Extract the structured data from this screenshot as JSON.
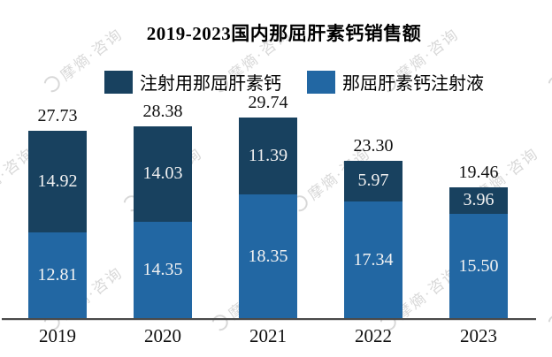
{
  "title": "2019-2023国内那屈肝素钙销售额",
  "colors": {
    "dark_series": "#18415F",
    "light_series": "#2267A3",
    "axis": "#4A4A4A",
    "in_bar_text": "#F2F2F2",
    "label_text": "#111111",
    "watermark": "#D8D8D8",
    "background": "#FFFFFF"
  },
  "watermark": {
    "icon": "ring-logo",
    "text": "摩熵·咨询"
  },
  "chart_data": {
    "type": "bar",
    "stacked": true,
    "title": "2019-2023国内那屈肝素钙销售额",
    "xlabel": "",
    "ylabel": "",
    "grid": false,
    "legend_position": "top",
    "categories": [
      "2019",
      "2020",
      "2021",
      "2022",
      "2023"
    ],
    "series": [
      {
        "name": "注射用那屈肝素钙",
        "stack_position": "top",
        "color": "#18415F",
        "values": [
          14.92,
          14.03,
          11.39,
          5.97,
          3.96
        ]
      },
      {
        "name": "那屈肝素钙注射液",
        "stack_position": "bottom",
        "color": "#2267A3",
        "values": [
          12.81,
          14.35,
          18.35,
          17.34,
          15.5
        ]
      }
    ],
    "totals": [
      27.73,
      28.38,
      29.74,
      23.3,
      19.46
    ],
    "value_label_decimals": 2,
    "ylim": [
      0,
      32
    ]
  }
}
